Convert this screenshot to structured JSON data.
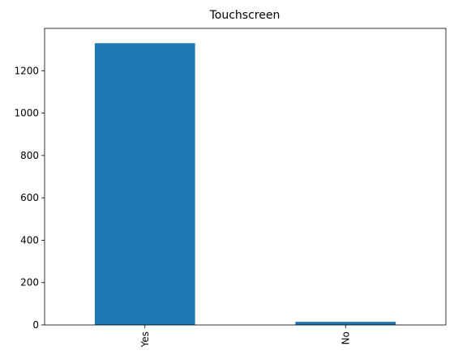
{
  "chart_data": {
    "type": "bar",
    "title": "Touchscreen",
    "xlabel": "",
    "ylabel": "",
    "categories": [
      "Yes",
      "No"
    ],
    "values": [
      1330,
      15
    ],
    "ylim": [
      0,
      1400
    ],
    "yticks": [
      0,
      200,
      400,
      600,
      800,
      1000,
      1200
    ],
    "grid": false,
    "legend": "none",
    "bar_color": "#1f77b4",
    "xtick_rotation": 90
  }
}
